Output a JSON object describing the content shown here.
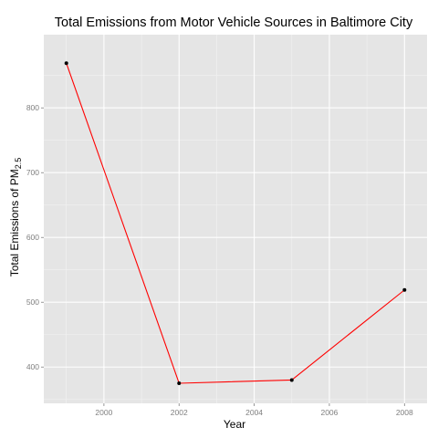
{
  "chart_data": {
    "type": "line",
    "title": "Total Emissions from Motor Vehicle Sources in Baltimore City",
    "xlabel": "Year",
    "ylabel_main": "Total Emissions of PM",
    "ylabel_sub": "2.5",
    "x": [
      1999,
      2002,
      2005,
      2008
    ],
    "y": [
      869,
      375,
      380,
      519
    ],
    "xlim": [
      1998.4,
      2008.6
    ],
    "ylim": [
      344,
      913
    ],
    "x_ticks": [
      2000,
      2002,
      2004,
      2006,
      2008
    ],
    "y_ticks": [
      400,
      500,
      600,
      700,
      800
    ],
    "grid": true,
    "line_color": "#ff0000",
    "point_color": "#000000",
    "panel_background": "#e5e5e5",
    "grid_color": "#ffffff"
  }
}
